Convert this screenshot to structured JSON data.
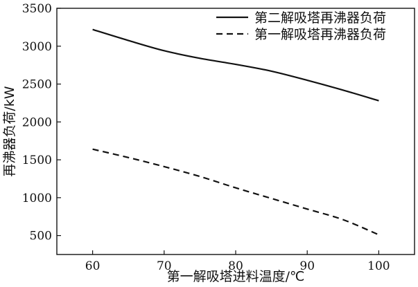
{
  "chart_data": {
    "type": "line",
    "title": "",
    "xlabel": "第一解吸塔进料温度/℃",
    "ylabel": "再沸器负荷/kW",
    "xlim": [
      55,
      105
    ],
    "ylim": [
      250,
      3500
    ],
    "xticks": [
      60,
      70,
      80,
      90,
      100
    ],
    "yticks": [
      500,
      1000,
      1500,
      2000,
      2500,
      3000,
      3500
    ],
    "grid": false,
    "legend_position": "top-right",
    "series": [
      {
        "name": "第二解吸塔再沸器负荷",
        "style": "solid",
        "color": "#111111",
        "x": [
          60,
          65,
          70,
          75,
          80,
          85,
          90,
          95,
          100
        ],
        "y": [
          3220,
          3075,
          2940,
          2840,
          2760,
          2670,
          2550,
          2420,
          2280
        ]
      },
      {
        "name": "第一解吸塔再沸器负荷",
        "style": "dashed",
        "color": "#111111",
        "x": [
          60,
          65,
          70,
          75,
          80,
          85,
          90,
          95,
          100
        ],
        "y": [
          1640,
          1530,
          1410,
          1280,
          1130,
          990,
          850,
          710,
          510
        ]
      }
    ]
  }
}
